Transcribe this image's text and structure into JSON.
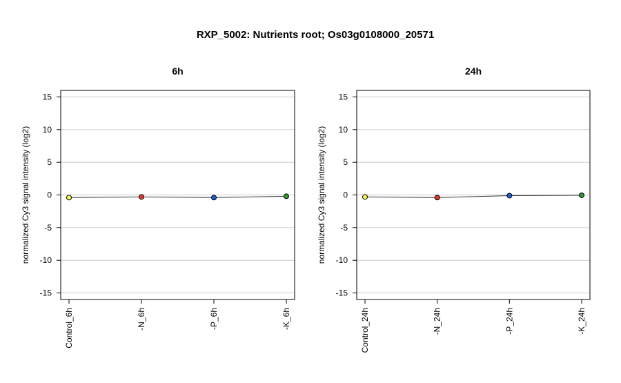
{
  "title": "RXP_5002: Nutrients root; Os03g0108000_20571",
  "chart_data": [
    {
      "type": "line",
      "title": "6h",
      "xlabel": "",
      "ylabel": "normalized Cy3 signal intensity (log2)",
      "ylim": [
        -16,
        16
      ],
      "yticks": [
        -15,
        -10,
        -5,
        0,
        5,
        10,
        15
      ],
      "grid": true,
      "categories": [
        "Control_6h",
        "-N_6h",
        "-P_6h",
        "-K_6h"
      ],
      "values": [
        -0.4,
        -0.3,
        -0.4,
        -0.2
      ],
      "point_colors": [
        "#ffff44",
        "#e8372c",
        "#2060d8",
        "#2e9a2e"
      ]
    },
    {
      "type": "line",
      "title": "24h",
      "xlabel": "",
      "ylabel": "normalized Cy3 signal intensity (log2)",
      "ylim": [
        -16,
        16
      ],
      "yticks": [
        -15,
        -10,
        -5,
        0,
        5,
        10,
        15
      ],
      "grid": true,
      "categories": [
        "Control_24h",
        "-N_24h",
        "-P_24h",
        "-K_24h"
      ],
      "values": [
        -0.3,
        -0.4,
        -0.1,
        -0.05
      ],
      "point_colors": [
        "#ffff44",
        "#e8372c",
        "#2060d8",
        "#2e9a2e"
      ]
    }
  ]
}
